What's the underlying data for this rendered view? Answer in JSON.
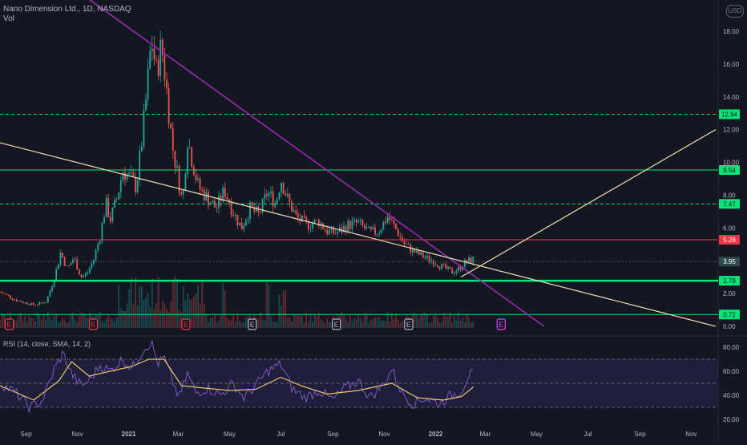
{
  "header": {
    "symbol_line": "Nano Dimension Ltd., 1D, NASDAQ",
    "volume_label": "Vol",
    "currency": "USD"
  },
  "rsi_panel": {
    "label": "RSI (14, close, SMA, 14, 2)"
  },
  "colors": {
    "background": "#131722",
    "up": "#26a69a",
    "down": "#ef5350",
    "support_green": "#00e676",
    "resistance_red": "#f23645",
    "trend_purple": "#9c27b0",
    "trend_cream": "#f5deb3",
    "rsi_line": "#7e57c2",
    "rsi_ma": "#e8c468",
    "rsi_band": "#2a2450"
  },
  "chart_data": [
    {
      "type": "candlestick",
      "x_ticks": [
        "Sep",
        "Nov",
        "2021",
        "Mar",
        "May",
        "Jul",
        "Sep",
        "Nov",
        "2022",
        "Mar",
        "May",
        "Jul",
        "Sep",
        "Nov"
      ],
      "x_range_months": [
        "2020-08",
        "2022-11"
      ],
      "y_ticks": [
        0.0,
        2.0,
        4.0,
        6.0,
        8.0,
        10.0,
        12.0,
        14.0,
        16.0,
        18.0
      ],
      "ylim": [
        0,
        19.5
      ],
      "price_labels": [
        {
          "value": 12.94,
          "text": "12.94",
          "color": "#00e676"
        },
        {
          "value": 9.54,
          "text": "9.54",
          "color": "#00e676"
        },
        {
          "value": 7.47,
          "text": "7.47",
          "color": "#00e676"
        },
        {
          "value": 5.28,
          "text": "5.28",
          "color": "#f23645"
        },
        {
          "value": 3.95,
          "text": "3.95",
          "color": "#2f4a4a"
        },
        {
          "value": 2.78,
          "text": "2.78",
          "color": "#00e676"
        },
        {
          "value": 0.72,
          "text": "0.72",
          "color": "#00e676"
        }
      ],
      "horizontal_levels": [
        {
          "value": 12.94,
          "style": "dashed",
          "color": "#00e676"
        },
        {
          "value": 9.54,
          "style": "solid",
          "color": "#00e676"
        },
        {
          "value": 7.47,
          "style": "dashed",
          "color": "#00e676"
        },
        {
          "value": 5.28,
          "style": "solid",
          "color": "#f23645"
        },
        {
          "value": 3.95,
          "style": "dotted",
          "color": "#787b86"
        },
        {
          "value": 2.78,
          "style": "solid-thick",
          "color": "#00e676"
        },
        {
          "value": 0.72,
          "style": "solid",
          "color": "#00e676"
        }
      ],
      "close_path": [
        [
          "2020-08-01",
          2.1
        ],
        [
          "2020-08-20",
          1.6
        ],
        [
          "2020-09-10",
          1.3
        ],
        [
          "2020-09-25",
          1.5
        ],
        [
          "2020-10-05",
          3.0
        ],
        [
          "2020-10-12",
          4.5
        ],
        [
          "2020-10-20",
          3.5
        ],
        [
          "2020-10-28",
          4.2
        ],
        [
          "2020-11-05",
          3.0
        ],
        [
          "2020-11-12",
          3.2
        ],
        [
          "2020-11-20",
          4.0
        ],
        [
          "2020-11-28",
          5.5
        ],
        [
          "2020-12-05",
          7.5
        ],
        [
          "2020-12-10",
          6.5
        ],
        [
          "2020-12-18",
          7.8
        ],
        [
          "2020-12-25",
          9.5
        ],
        [
          "2021-01-04",
          9.0
        ],
        [
          "2021-01-10",
          8.5
        ],
        [
          "2021-01-16",
          11.0
        ],
        [
          "2021-01-22",
          14.0
        ],
        [
          "2021-01-28",
          17.5
        ],
        [
          "2021-02-03",
          15.5
        ],
        [
          "2021-02-09",
          17.2
        ],
        [
          "2021-02-15",
          14.5
        ],
        [
          "2021-02-22",
          11.0
        ],
        [
          "2021-03-01",
          9.0
        ],
        [
          "2021-03-06",
          7.5
        ],
        [
          "2021-03-12",
          11.5
        ],
        [
          "2021-03-18",
          10.0
        ],
        [
          "2021-03-25",
          8.5
        ],
        [
          "2021-04-05",
          7.8
        ],
        [
          "2021-04-15",
          7.2
        ],
        [
          "2021-04-25",
          8.3
        ],
        [
          "2021-05-05",
          7.0
        ],
        [
          "2021-05-15",
          6.0
        ],
        [
          "2021-05-25",
          7.2
        ],
        [
          "2021-06-05",
          6.8
        ],
        [
          "2021-06-15",
          8.2
        ],
        [
          "2021-06-25",
          7.5
        ],
        [
          "2021-07-01",
          9.0
        ],
        [
          "2021-07-10",
          7.6
        ],
        [
          "2021-07-20",
          6.6
        ],
        [
          "2021-08-01",
          6.2
        ],
        [
          "2021-08-15",
          6.4
        ],
        [
          "2021-08-25",
          5.8
        ],
        [
          "2021-09-05",
          5.7
        ],
        [
          "2021-09-20",
          6.2
        ],
        [
          "2021-10-01",
          6.3
        ],
        [
          "2021-10-15",
          5.7
        ],
        [
          "2021-10-25",
          5.8
        ],
        [
          "2021-11-05",
          6.7
        ],
        [
          "2021-11-15",
          5.9
        ],
        [
          "2021-11-25",
          5.0
        ],
        [
          "2021-12-05",
          4.6
        ],
        [
          "2021-12-15",
          4.3
        ],
        [
          "2021-12-28",
          4.0
        ],
        [
          "2022-01-10",
          3.6
        ],
        [
          "2022-01-20",
          3.3
        ],
        [
          "2022-01-28",
          3.5
        ],
        [
          "2022-02-05",
          3.9
        ],
        [
          "2022-02-15",
          4.1
        ]
      ],
      "trendlines": [
        {
          "name": "",
          "color": "#9c27b0",
          "from": [
            "2020-10-31",
            20.5
          ],
          "to": [
            "2022-05-10",
            0.0
          ]
        },
        {
          "name": "",
          "color": "#f5deb3",
          "from": [
            "2020-08-01",
            11.2
          ],
          "to": [
            "2022-11-30",
            0.0
          ]
        },
        {
          "name": "",
          "color": "#f5deb3",
          "from": [
            "2022-01-31",
            3.0
          ],
          "to": [
            "2022-11-30",
            12.0
          ]
        }
      ],
      "earnings_markers": [
        {
          "date": "2020-08-12",
          "label": "E",
          "color": "#f23645"
        },
        {
          "date": "2020-11-20",
          "label": "E",
          "color": "#f23645"
        },
        {
          "date": "2021-03-10",
          "label": "E",
          "color": "#f23645"
        },
        {
          "date": "2021-05-28",
          "label": "E",
          "color": "#b2b5be"
        },
        {
          "date": "2021-09-05",
          "label": "E",
          "color": "#b2b5be"
        },
        {
          "date": "2021-11-30",
          "label": "E",
          "color": "#b2b5be"
        },
        {
          "date": "2022-03-20",
          "label": "E",
          "color": "#e040fb"
        }
      ]
    },
    {
      "type": "line",
      "name": "RSI",
      "y_ticks": [
        20.0,
        40.0,
        60.0,
        80.0
      ],
      "ylim": [
        15,
        88
      ],
      "band": [
        30,
        70
      ],
      "mid": 50,
      "rsi_path": [
        [
          "2020-08-01",
          50
        ],
        [
          "2020-08-20",
          42
        ],
        [
          "2020-09-05",
          30
        ],
        [
          "2020-09-20",
          35
        ],
        [
          "2020-10-05",
          62
        ],
        [
          "2020-10-15",
          75
        ],
        [
          "2020-10-25",
          58
        ],
        [
          "2020-11-05",
          48
        ],
        [
          "2020-11-15",
          52
        ],
        [
          "2020-11-28",
          65
        ],
        [
          "2020-12-10",
          60
        ],
        [
          "2020-12-25",
          70
        ],
        [
          "2021-01-05",
          62
        ],
        [
          "2021-01-18",
          78
        ],
        [
          "2021-01-28",
          84
        ],
        [
          "2021-02-05",
          66
        ],
        [
          "2021-02-12",
          72
        ],
        [
          "2021-02-22",
          52
        ],
        [
          "2021-03-02",
          38
        ],
        [
          "2021-03-12",
          58
        ],
        [
          "2021-03-22",
          42
        ],
        [
          "2021-04-05",
          46
        ],
        [
          "2021-04-20",
          40
        ],
        [
          "2021-05-05",
          50
        ],
        [
          "2021-05-18",
          38
        ],
        [
          "2021-06-01",
          48
        ],
        [
          "2021-06-15",
          60
        ],
        [
          "2021-07-01",
          66
        ],
        [
          "2021-07-15",
          45
        ],
        [
          "2021-07-30",
          38
        ],
        [
          "2021-08-15",
          44
        ],
        [
          "2021-09-01",
          36
        ],
        [
          "2021-09-15",
          46
        ],
        [
          "2021-10-01",
          52
        ],
        [
          "2021-10-15",
          38
        ],
        [
          "2021-11-01",
          50
        ],
        [
          "2021-11-10",
          62
        ],
        [
          "2021-11-22",
          42
        ],
        [
          "2021-12-05",
          33
        ],
        [
          "2021-12-20",
          38
        ],
        [
          "2022-01-05",
          33
        ],
        [
          "2022-01-20",
          40
        ],
        [
          "2022-02-01",
          44
        ],
        [
          "2022-02-10",
          58
        ],
        [
          "2022-02-15",
          57
        ]
      ],
      "rsi_ma_path": [
        [
          "2020-08-01",
          48
        ],
        [
          "2020-09-10",
          36
        ],
        [
          "2020-10-10",
          52
        ],
        [
          "2020-10-25",
          68
        ],
        [
          "2020-11-15",
          56
        ],
        [
          "2020-12-10",
          60
        ],
        [
          "2021-01-05",
          64
        ],
        [
          "2021-01-25",
          70
        ],
        [
          "2021-02-12",
          70
        ],
        [
          "2021-03-05",
          48
        ],
        [
          "2021-04-01",
          46
        ],
        [
          "2021-05-01",
          44
        ],
        [
          "2021-06-01",
          45
        ],
        [
          "2021-07-01",
          55
        ],
        [
          "2021-07-25",
          48
        ],
        [
          "2021-08-25",
          41
        ],
        [
          "2021-10-01",
          44
        ],
        [
          "2021-11-10",
          50
        ],
        [
          "2021-12-10",
          38
        ],
        [
          "2022-01-10",
          36
        ],
        [
          "2022-02-01",
          39
        ],
        [
          "2022-02-15",
          47
        ]
      ]
    }
  ]
}
